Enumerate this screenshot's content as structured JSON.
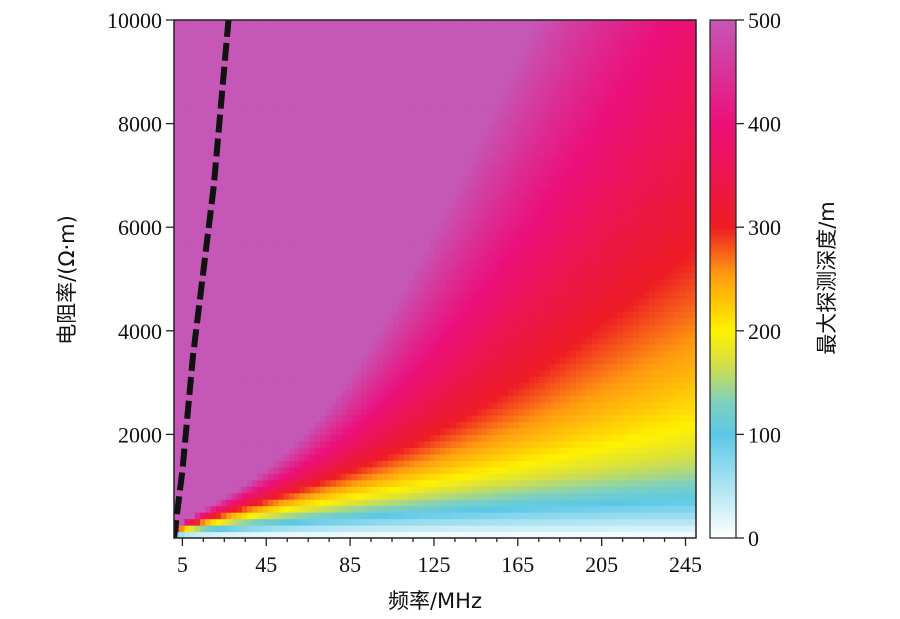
{
  "chart_data": {
    "type": "heatmap",
    "xlabel": "频率/MHz",
    "ylabel": "电阻率/(Ω·m)",
    "colorbar_label": "最大探测深度/m",
    "x_ticks": [
      5,
      45,
      85,
      125,
      165,
      205,
      245
    ],
    "x_tick_labels": [
      "5",
      "45",
      "85",
      "125",
      "165",
      "205",
      "245"
    ],
    "y_ticks": [
      2000,
      4000,
      6000,
      8000,
      10000
    ],
    "y_tick_labels": [
      "2000",
      "4000",
      "6000",
      "8000",
      "10000"
    ],
    "colorbar_ticks": [
      0,
      100,
      200,
      300,
      400,
      500
    ],
    "colorbar_tick_labels": [
      "0",
      "100",
      "200",
      "300",
      "400",
      "500"
    ],
    "xlim": [
      1,
      250
    ],
    "ylim": [
      0,
      10000
    ],
    "zlim": [
      0,
      500
    ],
    "colormap": [
      {
        "value": 0,
        "color": "#ffffff"
      },
      {
        "value": 100,
        "color": "#5bc8e6"
      },
      {
        "value": 130,
        "color": "#7dd0c0"
      },
      {
        "value": 170,
        "color": "#d8e040"
      },
      {
        "value": 200,
        "color": "#fff200"
      },
      {
        "value": 255,
        "color": "#ff9a10"
      },
      {
        "value": 300,
        "color": "#ee1c24"
      },
      {
        "value": 400,
        "color": "#ec0f7a"
      },
      {
        "value": 500,
        "color": "#c557b6"
      }
    ],
    "dashed_contour": {
      "style": "dashed",
      "color": "#111111",
      "points": [
        [
          1,
          0
        ],
        [
          5,
          1300
        ],
        [
          10,
          3500
        ],
        [
          20,
          6800
        ],
        [
          27,
          10000
        ]
      ]
    }
  }
}
